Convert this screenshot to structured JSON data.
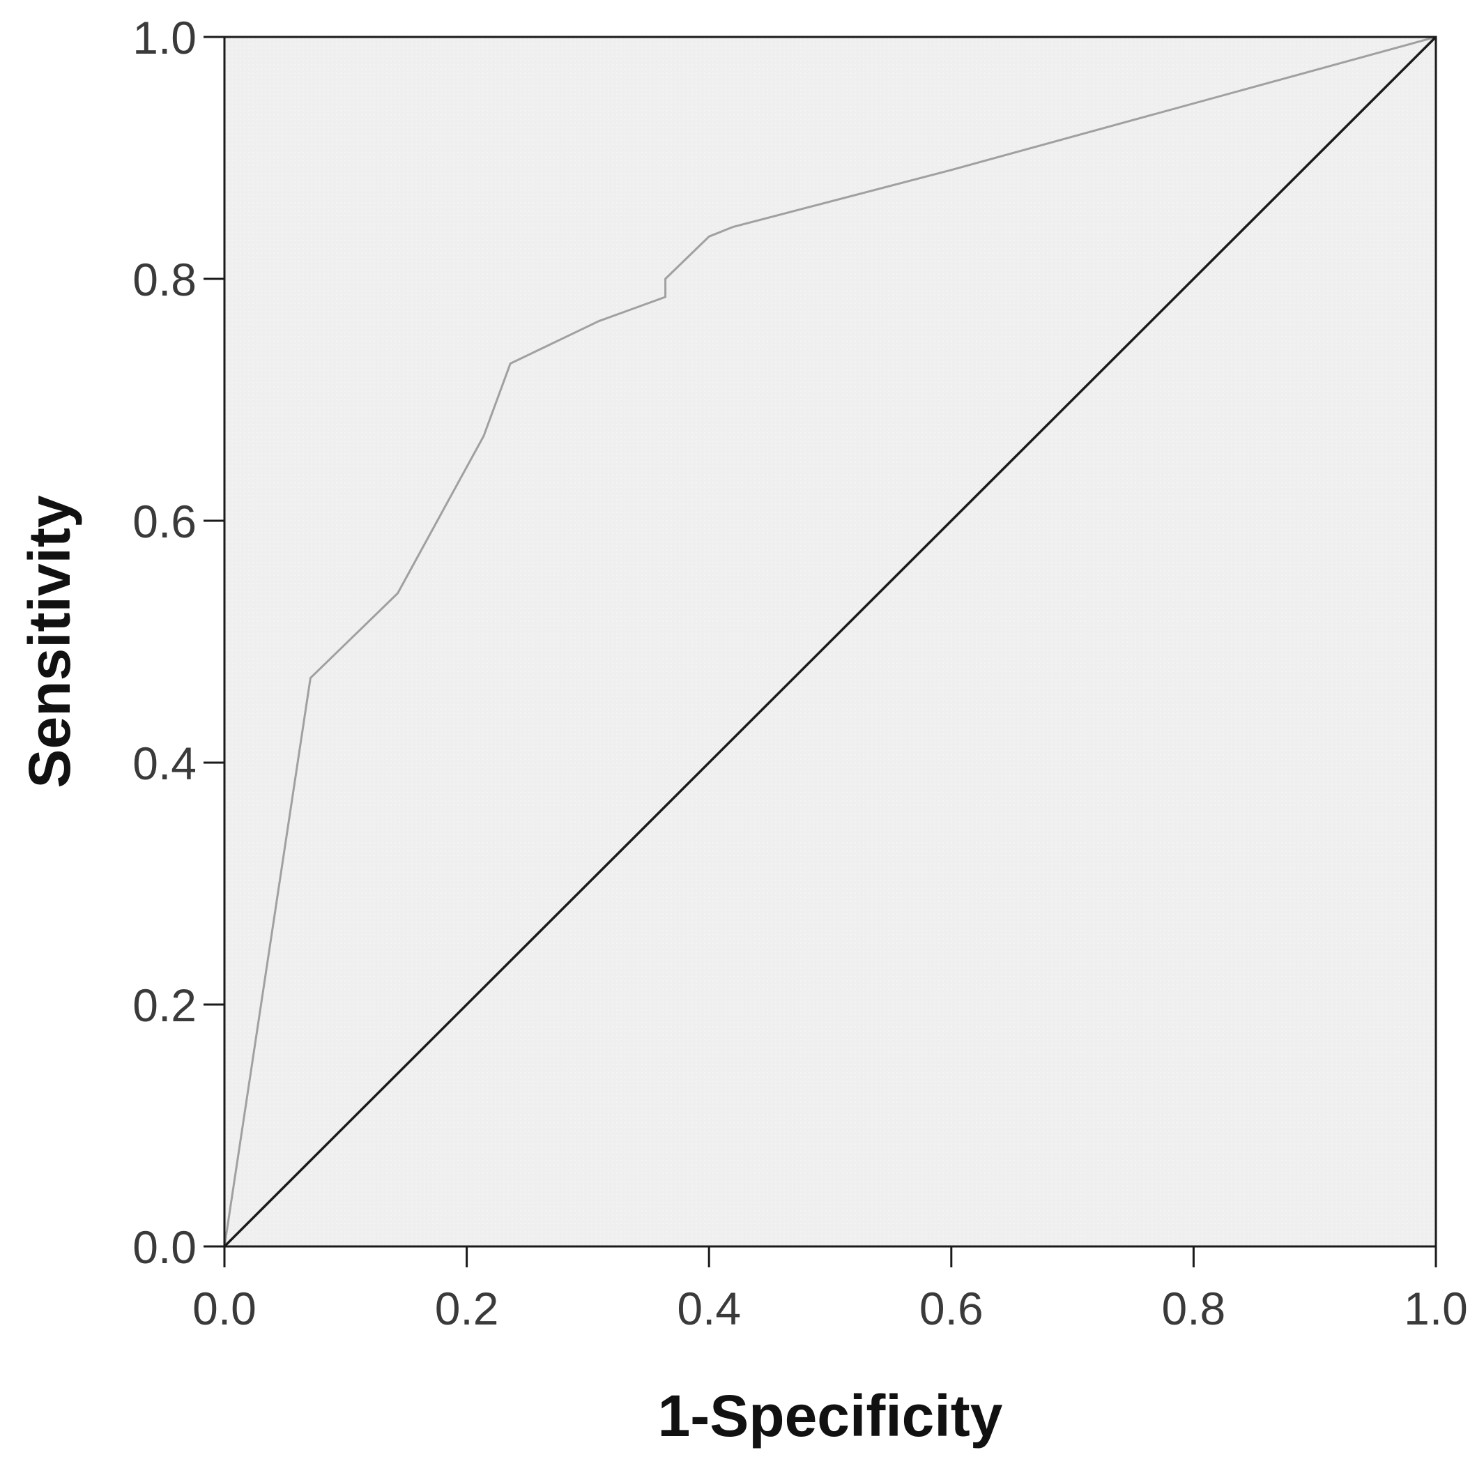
{
  "chart_data": {
    "type": "line",
    "title": "",
    "xlabel": "1-Specificity",
    "ylabel": "Sensitivity",
    "xlim": [
      0.0,
      1.0
    ],
    "ylim": [
      0.0,
      1.0
    ],
    "x_ticks": [
      "0.0",
      "0.2",
      "0.4",
      "0.6",
      "0.8",
      "1.0"
    ],
    "y_ticks": [
      "0.0",
      "0.2",
      "0.4",
      "0.6",
      "0.8",
      "1.0"
    ],
    "grid": false,
    "legend": "none",
    "series": [
      {
        "role": "roc-curve",
        "color": "#a0a0a0",
        "x": [
          0.0,
          0.071,
          0.143,
          0.214,
          0.236,
          0.309,
          0.364,
          0.364,
          0.4,
          0.42,
          0.6,
          1.0
        ],
        "y": [
          0.0,
          0.47,
          0.54,
          0.67,
          0.73,
          0.765,
          0.785,
          0.8,
          0.835,
          0.843,
          0.89,
          1.0
        ]
      },
      {
        "role": "reference-line",
        "color": "#1a1a1a",
        "x": [
          0.0,
          1.0
        ],
        "y": [
          0.0,
          1.0
        ]
      }
    ],
    "plot_background": "#efefef"
  }
}
